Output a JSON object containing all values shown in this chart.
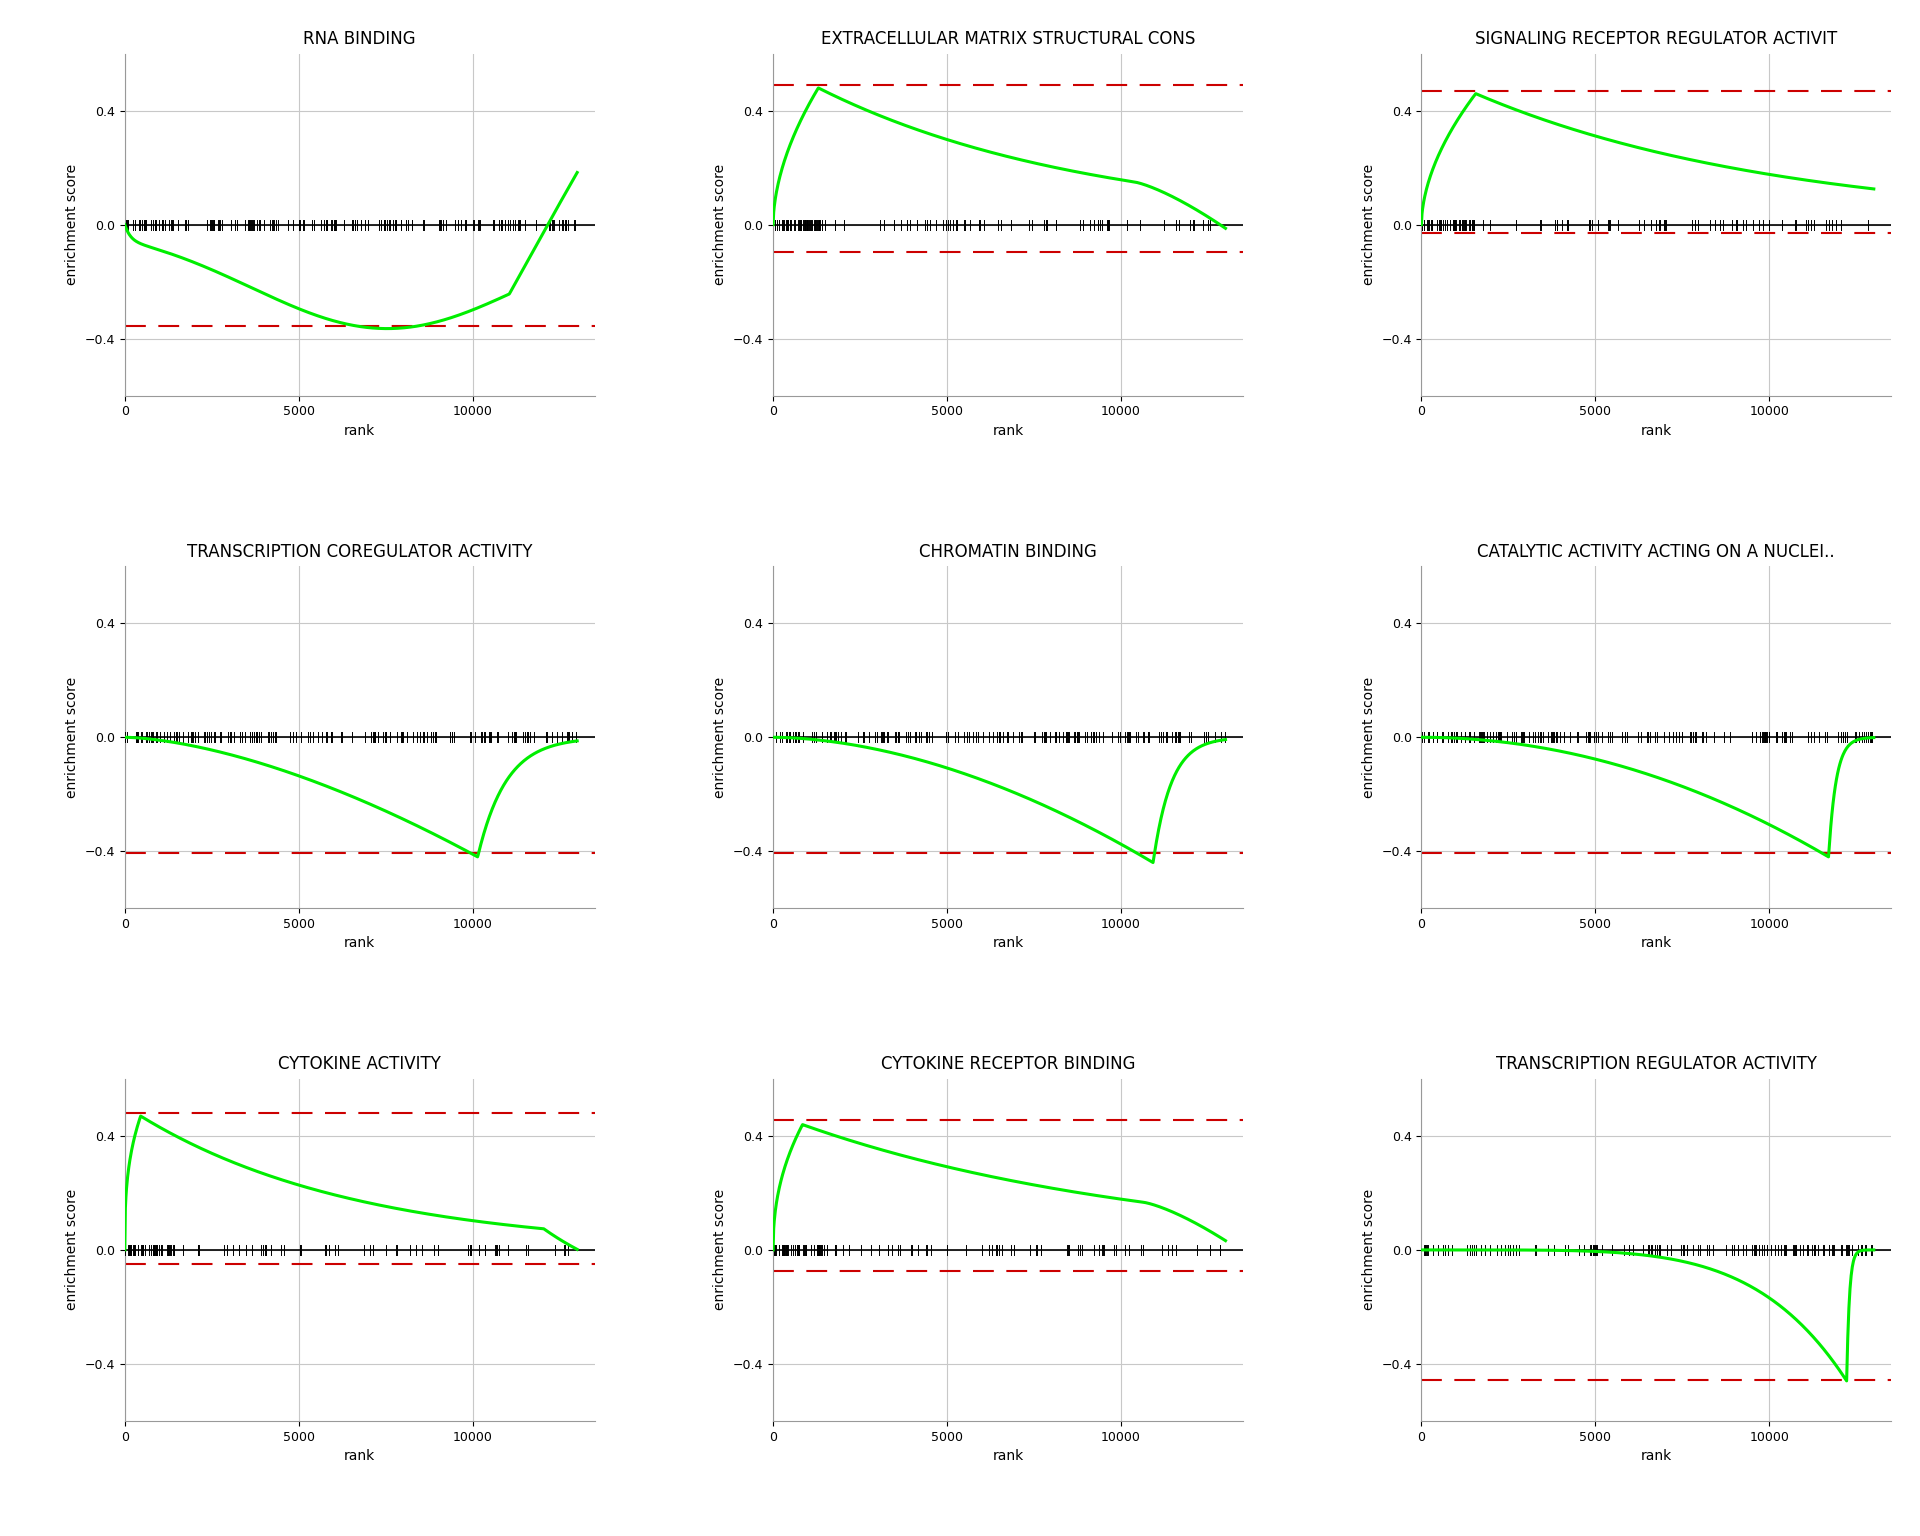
{
  "titles": [
    "RNA BINDING",
    "EXTRACELLULAR MATRIX STRUCTURAL CONS",
    "SIGNALING RECEPTOR REGULATOR ACTIVIT",
    "TRANSCRIPTION COREGULATOR ACTIVITY",
    "CHROMATIN BINDING",
    "CATALYTIC ACTIVITY ACTING ON A NUCLEI..",
    "CYTOKINE ACTIVITY",
    "CYTOKINE RECEPTOR BINDING",
    "TRANSCRIPTION REGULATOR ACTIVITY"
  ],
  "n_genes": 13000,
  "ylim": [
    -0.6,
    0.6
  ],
  "yticks": [
    -0.4,
    0.0,
    0.4
  ],
  "xlim": [
    0,
    13500
  ],
  "xticks": [
    0,
    5000,
    10000
  ],
  "background_color": "#ffffff",
  "grid_color": "#c8c8c8",
  "green_color": "#00ee00",
  "red_dashed_color": "#cc0000",
  "tick_color": "#000000",
  "title_fontsize": 12,
  "axis_label_fontsize": 10,
  "tick_fontsize": 9
}
